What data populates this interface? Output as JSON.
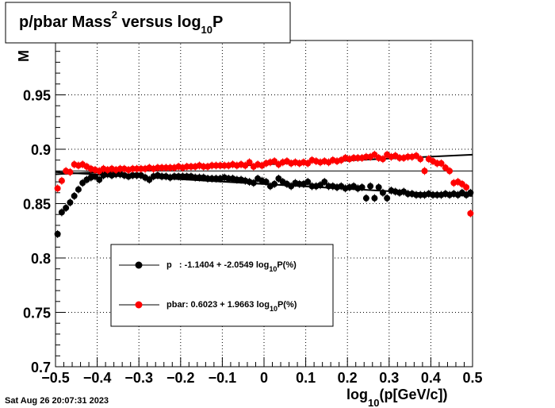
{
  "chart_data": {
    "type": "scatter",
    "title": {
      "prefix": "p/pbar Mass",
      "sup": "2",
      "middle": " versus log",
      "sub": "10",
      "suffix": "P"
    },
    "xlabel": {
      "prefix": "log",
      "sub": "10",
      "suffix": "(p[GeV/c])"
    },
    "ylabel": "M",
    "xlim": [
      -0.5,
      0.5
    ],
    "ylim": [
      0.7,
      1.0
    ],
    "x_ticks": [
      -0.5,
      -0.4,
      -0.3,
      -0.2,
      -0.1,
      0,
      0.1,
      0.2,
      0.3,
      0.4,
      0.5
    ],
    "x_tick_labels": [
      "−0.5",
      "−0.4",
      "−0.3",
      "−0.2",
      "−0.1",
      "0",
      "0.1",
      "0.2",
      "0.3",
      "0.4",
      "0.5"
    ],
    "y_ticks": [
      0.7,
      0.75,
      0.8,
      0.85,
      0.9,
      0.95
    ],
    "y_tick_labels": [
      "0.7",
      "0.75",
      "0.8",
      "0.85",
      "0.9",
      "0.95"
    ],
    "grid": true,
    "reference_line": 0.88,
    "legend": {
      "placement": "center-left",
      "entries": [
        {
          "prefix": "p   : -1.1404 + -2.0549 log",
          "sub": "10",
          "suffix": "P(%)"
        },
        {
          "prefix": "pbar: 0.6023 + 1.9663 log",
          "sub": "10",
          "suffix": "P(%)"
        }
      ]
    },
    "series": [
      {
        "color": "#000000",
        "fit": {
          "x": [
            -0.5,
            0.5
          ],
          "y": [
            0.879,
            0.857
          ]
        },
        "x": [
          -0.495,
          -0.485,
          -0.475,
          -0.465,
          -0.455,
          -0.445,
          -0.435,
          -0.425,
          -0.415,
          -0.405,
          -0.395,
          -0.385,
          -0.375,
          -0.365,
          -0.355,
          -0.345,
          -0.335,
          -0.325,
          -0.315,
          -0.305,
          -0.295,
          -0.285,
          -0.275,
          -0.265,
          -0.255,
          -0.245,
          -0.235,
          -0.225,
          -0.215,
          -0.205,
          -0.195,
          -0.185,
          -0.175,
          -0.165,
          -0.155,
          -0.145,
          -0.135,
          -0.125,
          -0.115,
          -0.105,
          -0.095,
          -0.085,
          -0.075,
          -0.065,
          -0.055,
          -0.045,
          -0.035,
          -0.025,
          -0.015,
          -0.005,
          0.005,
          0.015,
          0.025,
          0.035,
          0.045,
          0.055,
          0.065,
          0.075,
          0.085,
          0.095,
          0.105,
          0.115,
          0.125,
          0.135,
          0.145,
          0.155,
          0.165,
          0.175,
          0.185,
          0.195,
          0.205,
          0.215,
          0.225,
          0.235,
          0.245,
          0.255,
          0.265,
          0.275,
          0.285,
          0.295,
          0.305,
          0.315,
          0.325,
          0.335,
          0.345,
          0.355,
          0.365,
          0.375,
          0.385,
          0.395,
          0.405,
          0.415,
          0.425,
          0.435,
          0.445,
          0.455,
          0.465,
          0.475,
          0.485,
          0.495
        ],
        "y": [
          0.822,
          0.842,
          0.846,
          0.851,
          0.857,
          0.863,
          0.869,
          0.872,
          0.874,
          0.875,
          0.872,
          0.876,
          0.877,
          0.876,
          0.877,
          0.877,
          0.876,
          0.875,
          0.876,
          0.876,
          0.876,
          0.874,
          0.872,
          0.875,
          0.876,
          0.875,
          0.875,
          0.874,
          0.875,
          0.875,
          0.875,
          0.875,
          0.875,
          0.874,
          0.874,
          0.874,
          0.873,
          0.873,
          0.873,
          0.873,
          0.874,
          0.873,
          0.873,
          0.872,
          0.872,
          0.871,
          0.87,
          0.869,
          0.873,
          0.871,
          0.87,
          0.866,
          0.868,
          0.873,
          0.87,
          0.868,
          0.866,
          0.869,
          0.868,
          0.868,
          0.87,
          0.866,
          0.866,
          0.867,
          0.87,
          0.866,
          0.866,
          0.865,
          0.866,
          0.864,
          0.865,
          0.866,
          0.864,
          0.865,
          0.855,
          0.866,
          0.855,
          0.865,
          0.86,
          0.855,
          0.862,
          0.861,
          0.86,
          0.861,
          0.859,
          0.859,
          0.858,
          0.858,
          0.858,
          0.859,
          0.858,
          0.858,
          0.858,
          0.859,
          0.858,
          0.859,
          0.858,
          0.86,
          0.858,
          0.86
        ]
      },
      {
        "color": "#ff0000",
        "fit": {
          "x": [
            -0.5,
            0.5
          ],
          "y": [
            0.877,
            0.895
          ]
        },
        "x": [
          -0.495,
          -0.485,
          -0.475,
          -0.465,
          -0.455,
          -0.445,
          -0.435,
          -0.425,
          -0.415,
          -0.405,
          -0.395,
          -0.385,
          -0.375,
          -0.365,
          -0.355,
          -0.345,
          -0.335,
          -0.325,
          -0.315,
          -0.305,
          -0.295,
          -0.285,
          -0.275,
          -0.265,
          -0.255,
          -0.245,
          -0.235,
          -0.225,
          -0.215,
          -0.205,
          -0.195,
          -0.185,
          -0.175,
          -0.165,
          -0.155,
          -0.145,
          -0.135,
          -0.125,
          -0.115,
          -0.105,
          -0.095,
          -0.085,
          -0.075,
          -0.065,
          -0.055,
          -0.045,
          -0.035,
          -0.025,
          -0.015,
          -0.005,
          0.005,
          0.015,
          0.025,
          0.035,
          0.045,
          0.055,
          0.065,
          0.075,
          0.085,
          0.095,
          0.105,
          0.115,
          0.125,
          0.135,
          0.145,
          0.155,
          0.165,
          0.175,
          0.185,
          0.195,
          0.205,
          0.215,
          0.225,
          0.235,
          0.245,
          0.255,
          0.265,
          0.275,
          0.285,
          0.295,
          0.305,
          0.315,
          0.325,
          0.335,
          0.345,
          0.355,
          0.365,
          0.375,
          0.385,
          0.395,
          0.405,
          0.415,
          0.425,
          0.435,
          0.445,
          0.455,
          0.465,
          0.475,
          0.485,
          0.495
        ],
        "y": [
          0.864,
          0.871,
          0.88,
          0.879,
          0.886,
          0.885,
          0.886,
          0.884,
          0.882,
          0.881,
          0.88,
          0.882,
          0.881,
          0.882,
          0.881,
          0.882,
          0.882,
          0.881,
          0.882,
          0.882,
          0.882,
          0.882,
          0.883,
          0.882,
          0.883,
          0.883,
          0.883,
          0.883,
          0.883,
          0.884,
          0.883,
          0.884,
          0.884,
          0.884,
          0.885,
          0.884,
          0.884,
          0.885,
          0.885,
          0.885,
          0.885,
          0.885,
          0.886,
          0.885,
          0.886,
          0.885,
          0.888,
          0.884,
          0.886,
          0.885,
          0.887,
          0.888,
          0.889,
          0.886,
          0.888,
          0.889,
          0.887,
          0.888,
          0.887,
          0.888,
          0.887,
          0.89,
          0.889,
          0.888,
          0.889,
          0.888,
          0.89,
          0.889,
          0.89,
          0.892,
          0.891,
          0.892,
          0.892,
          0.892,
          0.893,
          0.893,
          0.895,
          0.892,
          0.891,
          0.895,
          0.893,
          0.894,
          0.892,
          0.892,
          0.893,
          0.893,
          0.894,
          0.891,
          0.88,
          0.891,
          0.889,
          0.887,
          0.887,
          0.883,
          0.88,
          0.869,
          0.87,
          0.868,
          0.865,
          0.841
        ]
      }
    ]
  },
  "timestamp": "Sat Aug 26 20:07:31 2023"
}
